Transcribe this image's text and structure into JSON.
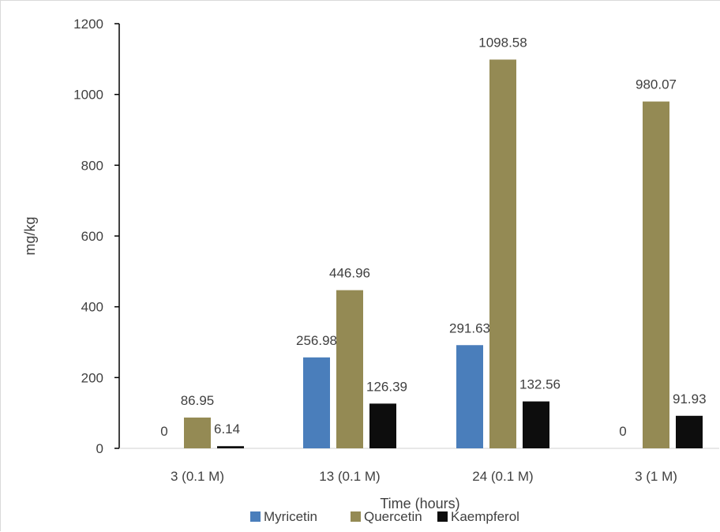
{
  "chart_data": {
    "type": "bar",
    "title": "",
    "xlabel": "Time (hours)",
    "ylabel": "mg/kg",
    "ylim": [
      0,
      1200
    ],
    "yticks": [
      0,
      200,
      400,
      600,
      800,
      1000,
      1200
    ],
    "grid": false,
    "legend_position": "bottom",
    "categories": [
      "3 (0.1 M)",
      "13 (0.1 M)",
      "24 (0.1 M)",
      "3 (1 M)"
    ],
    "series": [
      {
        "name": "Myricetin",
        "color": "#4a7ebb",
        "values": [
          0,
          256.98,
          291.63,
          0
        ]
      },
      {
        "name": "Quercetin",
        "color": "#948a54",
        "values": [
          86.95,
          446.96,
          1098.58,
          980.07
        ]
      },
      {
        "name": "Kaempferol",
        "color": "#0d0d0d",
        "values": [
          6.14,
          126.39,
          132.56,
          91.93
        ]
      }
    ]
  }
}
